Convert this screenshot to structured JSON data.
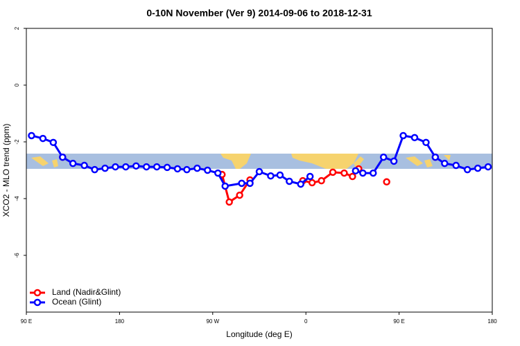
{
  "chart_data": {
    "type": "line",
    "title": "0-10N November (Ver 9)   2014-09-06 to 2018-12-31",
    "x_label": "Longitude (deg E)",
    "y_label": "XCO2 - MLO trend (ppm)",
    "xlim": [
      90,
      540
    ],
    "xticks": [
      {
        "value": 90,
        "label": "90 E"
      },
      180,
      {
        "value": 270,
        "label": "90 W"
      },
      {
        "value": 360,
        "label": "0"
      },
      {
        "value": 450,
        "label": "90 E"
      },
      {
        "value": 540,
        "label": "180"
      }
    ],
    "ylim": [
      -8,
      2
    ],
    "yticks": [
      2,
      0,
      -2,
      -4,
      -6
    ],
    "legend": "bottom-left",
    "series": [
      {
        "name": "Land (Nadir&Glint)",
        "color": "#ff0000",
        "x": [
          125,
          null,
          279,
          286,
          296,
          306,
          null,
          357,
          366,
          375,
          386,
          397,
          405,
          411,
          null,
          438,
          null,
          485
        ],
        "values": [
          -2.54,
          null,
          -3.15,
          -4.12,
          -3.88,
          -3.34,
          null,
          -3.37,
          -3.44,
          -3.37,
          -3.07,
          -3.1,
          -3.22,
          -2.95,
          null,
          -3.41,
          null,
          -2.54
        ]
      },
      {
        "name": "Ocean (Glint)",
        "color": "#0000ff",
        "x": [
          95,
          106,
          116,
          125,
          135,
          146,
          156,
          166,
          176,
          186,
          196,
          206,
          216,
          226,
          236,
          245,
          255,
          265,
          275,
          282,
          298,
          306,
          315,
          326,
          335,
          344,
          355,
          364,
          null,
          408,
          415,
          425,
          435,
          445,
          454,
          465,
          476,
          485,
          494,
          505,
          516,
          526,
          536
        ],
        "values": [
          -1.78,
          -1.88,
          -2.02,
          -2.54,
          -2.76,
          -2.83,
          -2.98,
          -2.93,
          -2.88,
          -2.88,
          -2.85,
          -2.88,
          -2.88,
          -2.9,
          -2.95,
          -2.98,
          -2.93,
          -3.0,
          -3.1,
          -3.56,
          -3.46,
          -3.46,
          -3.05,
          -3.2,
          -3.17,
          -3.39,
          -3.49,
          -3.22,
          null,
          -3.02,
          -3.1,
          -3.1,
          -2.54,
          -2.68,
          -1.78,
          -1.85,
          -2.02,
          -2.54,
          -2.76,
          -2.83,
          -2.98,
          -2.93,
          -2.88
        ]
      }
    ]
  }
}
